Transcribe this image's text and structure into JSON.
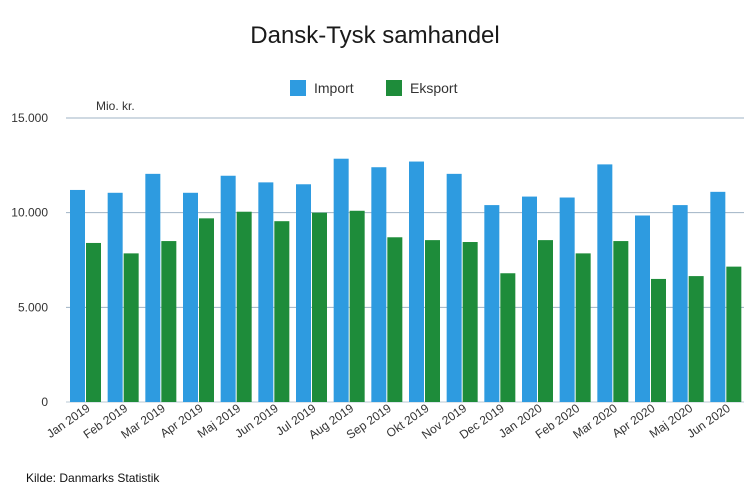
{
  "chart_data": {
    "type": "bar",
    "title": "Dansk-Tysk samhandel",
    "unit_label": "Mio. kr.",
    "source": "Kilde: Danmarks Statistik",
    "categories": [
      "Jan 2019",
      "Feb 2019",
      "Mar 2019",
      "Apr 2019",
      "Maj 2019",
      "Jun 2019",
      "Jul 2019",
      "Aug 2019",
      "Sep 2019",
      "Okt 2019",
      "Nov 2019",
      "Dec 2019",
      "Jan 2020",
      "Feb 2020",
      "Mar 2020",
      "Apr 2020",
      "Maj 2020",
      "Jun 2020"
    ],
    "series": [
      {
        "name": "Import",
        "color": "#2e9be0",
        "values": [
          11200,
          11050,
          12050,
          11050,
          11950,
          11600,
          11500,
          12850,
          12400,
          12700,
          12050,
          10400,
          10850,
          10800,
          12550,
          9850,
          10400,
          11100
        ]
      },
      {
        "name": "Eksport",
        "color": "#1e8c3a",
        "values": [
          8400,
          7850,
          8500,
          9700,
          10050,
          9550,
          10000,
          10100,
          8700,
          8550,
          8450,
          6800,
          8550,
          7850,
          8500,
          6500,
          6650,
          7150
        ]
      }
    ],
    "ylim": [
      0,
      15000
    ],
    "yticks": [
      0,
      5000,
      10000,
      15000
    ],
    "ytick_labels": [
      "0",
      "5.000",
      "10.000",
      "15.000"
    ],
    "grid": true,
    "legend_position": "top-center"
  }
}
